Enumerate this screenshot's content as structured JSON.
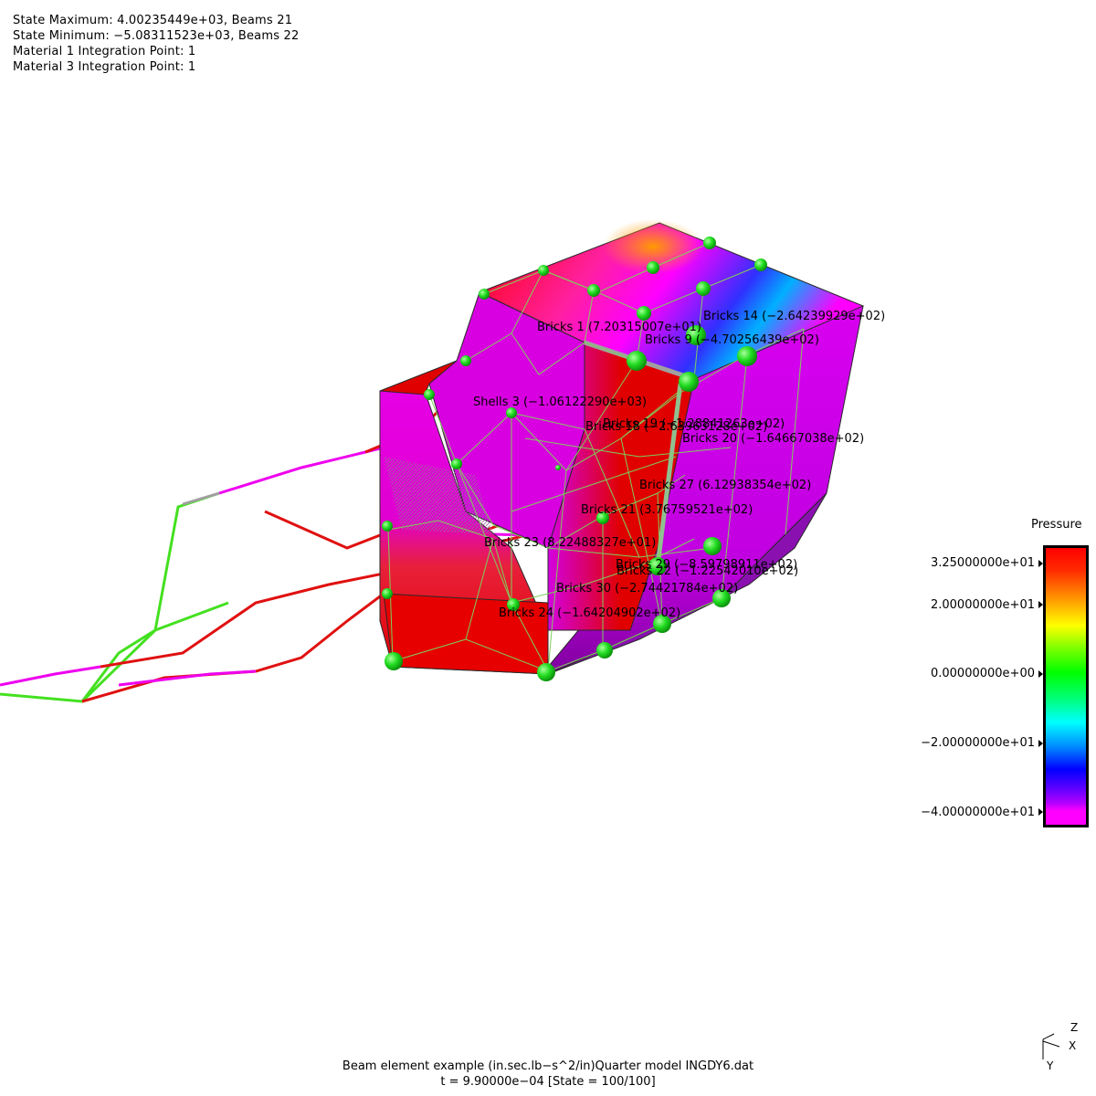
{
  "header": {
    "line1": "State Maximum: 4.00235449e+03, Beams 21",
    "line2": "State Minimum: −5.08311523e+03, Beams 22",
    "line3": "Material 1 Integration Point: 1",
    "line4": "Material 3 Integration Point: 1"
  },
  "element_labels": [
    "Bricks 1 (7.20315007e+01)",
    "Bricks 14 (−2.64239929e+02)",
    "Bricks 9 (−4.70256439e+02)",
    "Shells 3 (−1.06122290e+03)",
    "Bricks 19 (−1.28841263e+02)",
    "Bricks 18 (−2.63963128e+02)",
    "Bricks 20 (−1.64667038e+02)",
    "Bricks 27 (6.12938354e+02)",
    "Bricks 21 (3.76759521e+02)",
    "Bricks 23 (8.22488327e+01)",
    "Bricks 29 (−8.59798911e+02)",
    "Bricks 22 (−1.22542010e+02)",
    "Bricks 30 (−2.74421784e+02)",
    "Bricks 24 (−1.64204902e+02)"
  ],
  "legend": {
    "title": "Pressure",
    "ticks": [
      {
        "label": "3.25000000e+01",
        "level": 0.06
      },
      {
        "label": "2.00000000e+01",
        "level": 0.21
      },
      {
        "label": "0.00000000e+00",
        "level": 0.46
      },
      {
        "label": "−2.00000000e+01",
        "level": 0.71
      },
      {
        "label": "−4.00000000e+01",
        "level": 0.96
      }
    ],
    "colors": {
      "max": "#ff0000",
      "mid": "#00ff00",
      "min": "#ff00ff"
    }
  },
  "footer": {
    "line1": "Beam element example (in.sec.lb−s^2/in)Quarter model INGDY6.dat",
    "line2": "t = 9.90000e−04 [State = 100/100]"
  },
  "axes": {
    "z": "Z",
    "x": "X",
    "y": "Y"
  },
  "colors": {
    "brick_red": "#e60000",
    "brick_magenta": "#d400e0",
    "node_green": "#22dd22",
    "mesh_line": "#7fd05a",
    "beam_red": "#e01010",
    "beam_green": "#44e020",
    "beam_magenta": "#ee00ee"
  }
}
